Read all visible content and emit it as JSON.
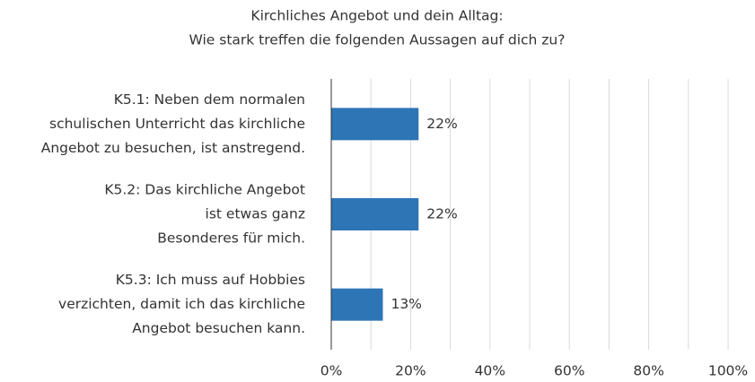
{
  "chart_data": {
    "type": "hbar",
    "title": [
      "Kirchliches Angebot und dein Alltag:",
      "Wie stark treffen die folgenden Aussagen auf dich zu?"
    ],
    "categories": [
      [
        "K5.1: Neben dem normalen",
        "schulischen Unterricht das kirchliche",
        "Angebot zu besuchen, ist anstregend."
      ],
      [
        "K5.2: Das kirchliche Angebot",
        "ist etwas ganz",
        "Besonderes für mich."
      ],
      [
        "K5.3: Ich muss auf Hobbies",
        "verzichten, damit ich das kirchliche",
        "Angebot besuchen kann."
      ]
    ],
    "values": [
      22,
      22,
      13
    ],
    "value_labels": [
      "22%",
      "22%",
      "13%"
    ],
    "color": "#2e75b6",
    "xlim": [
      0,
      100
    ],
    "xticks": [
      {
        "value": 0,
        "label": "0%"
      },
      {
        "value": 20,
        "label": "20%"
      },
      {
        "value": 40,
        "label": "40%"
      },
      {
        "value": 60,
        "label": "60%"
      },
      {
        "value": 80,
        "label": "80%"
      },
      {
        "value": 100,
        "label": "100%"
      }
    ],
    "minor_xticks": [
      10,
      30,
      50,
      70,
      90
    ],
    "grid": true
  }
}
